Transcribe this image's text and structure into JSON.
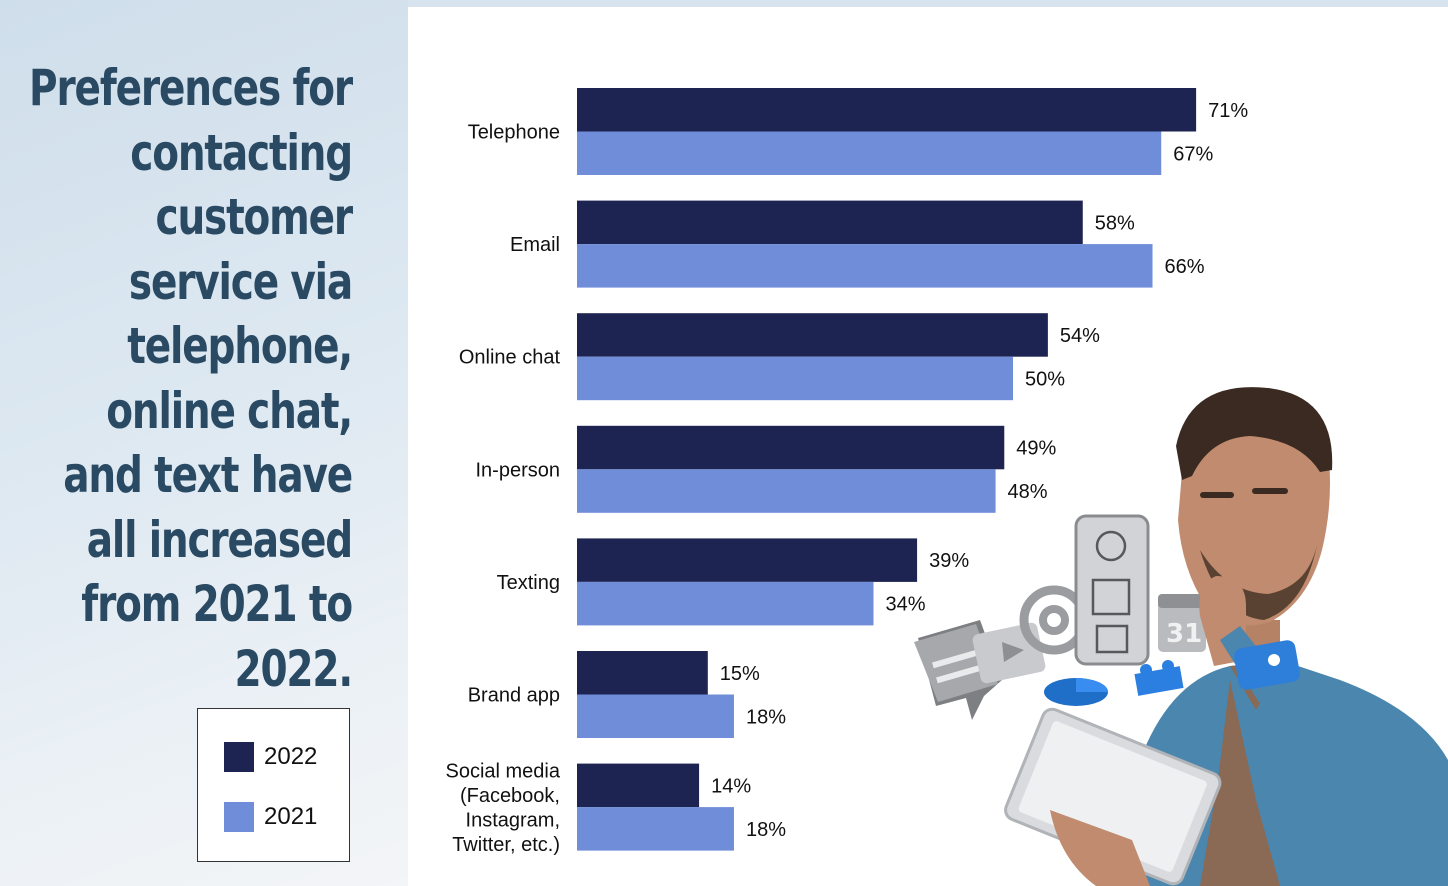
{
  "headline": "Preferences for contacting customer service via telephone, online chat, and text have all increased from 2021 to 2022.",
  "legend": {
    "items": [
      {
        "label": "2022",
        "color": "#1e2452"
      },
      {
        "label": "2021",
        "color": "#6f8dd8"
      }
    ]
  },
  "chart_data": {
    "type": "bar",
    "orientation": "horizontal",
    "categories": [
      [
        "Telephone"
      ],
      [
        "Email"
      ],
      [
        "Online chat"
      ],
      [
        "In-person"
      ],
      [
        "Texting"
      ],
      [
        "Brand app"
      ],
      [
        "Social media",
        "(Facebook,",
        "Instagram,",
        "Twitter, etc.)"
      ]
    ],
    "series": [
      {
        "name": "2022",
        "color": "#1e2452",
        "values": [
          71,
          58,
          54,
          49,
          39,
          15,
          14
        ]
      },
      {
        "name": "2021",
        "color": "#6f8dd8",
        "values": [
          67,
          66,
          50,
          48,
          34,
          18,
          18
        ]
      }
    ],
    "value_suffix": "%",
    "xlim": [
      0,
      100
    ],
    "grid": false,
    "legend_position": "bottom-left"
  },
  "illustration": {
    "subject": "man-with-tablet",
    "icons": [
      "chat-bubble-icon",
      "video-play-icon",
      "at-sign-icon",
      "smartphone-icon",
      "calendar-icon",
      "pie-chart-icon",
      "puzzle-icon",
      "location-pin-icon"
    ],
    "calendar_number": "31"
  }
}
